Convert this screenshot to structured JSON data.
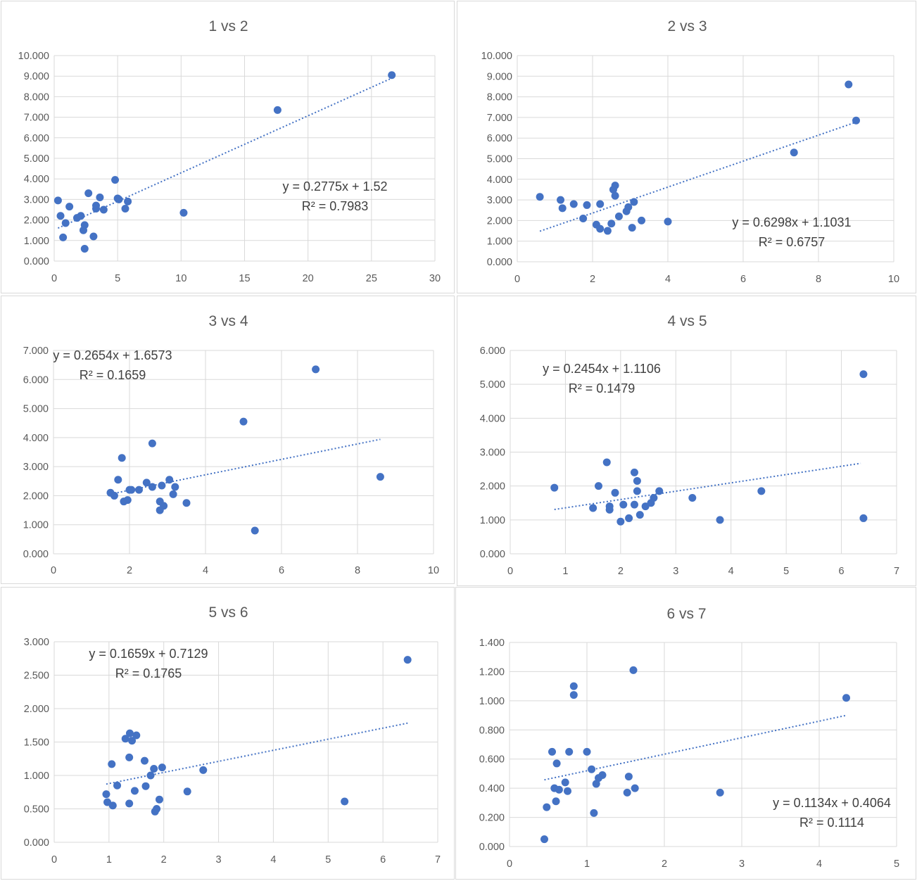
{
  "chart_data": [
    {
      "type": "scatter",
      "title": "1 vs 2",
      "xlim": [
        0,
        30
      ],
      "xticks": [
        0,
        5,
        10,
        15,
        20,
        25,
        30
      ],
      "ylim": [
        0,
        10
      ],
      "yticks": [
        "0.000",
        "1.000",
        "2.000",
        "3.000",
        "4.000",
        "5.000",
        "6.000",
        "7.000",
        "8.000",
        "9.000",
        "10.000"
      ],
      "grid": true,
      "trendline": {
        "type": "linear",
        "x_range": [
          0.3,
          26.6
        ],
        "equation": "y = 0.2775x + 1.52",
        "r2_label": "R² = 0.7983"
      },
      "points": [
        {
          "x": 0.3,
          "y": 2.95
        },
        {
          "x": 0.5,
          "y": 2.2
        },
        {
          "x": 0.7,
          "y": 1.15
        },
        {
          "x": 0.9,
          "y": 1.85
        },
        {
          "x": 1.2,
          "y": 2.65
        },
        {
          "x": 1.8,
          "y": 2.1
        },
        {
          "x": 2.1,
          "y": 2.2
        },
        {
          "x": 2.3,
          "y": 1.5
        },
        {
          "x": 2.4,
          "y": 1.75
        },
        {
          "x": 2.4,
          "y": 0.6
        },
        {
          "x": 2.7,
          "y": 3.3
        },
        {
          "x": 3.1,
          "y": 1.2
        },
        {
          "x": 3.3,
          "y": 2.7
        },
        {
          "x": 3.3,
          "y": 2.55
        },
        {
          "x": 3.6,
          "y": 3.1
        },
        {
          "x": 3.9,
          "y": 2.5
        },
        {
          "x": 4.8,
          "y": 3.95
        },
        {
          "x": 5.0,
          "y": 3.05
        },
        {
          "x": 5.1,
          "y": 3.0
        },
        {
          "x": 5.6,
          "y": 2.55
        },
        {
          "x": 5.8,
          "y": 2.9
        },
        {
          "x": 10.2,
          "y": 2.35
        },
        {
          "x": 17.6,
          "y": 7.35
        },
        {
          "x": 26.6,
          "y": 9.05
        }
      ]
    },
    {
      "type": "scatter",
      "title": "2 vs 3",
      "xlim": [
        0,
        10
      ],
      "xticks": [
        0,
        2,
        4,
        6,
        8,
        10
      ],
      "ylim": [
        0,
        10
      ],
      "yticks": [
        "0.000",
        "1.000",
        "2.000",
        "3.000",
        "4.000",
        "5.000",
        "6.000",
        "7.000",
        "8.000",
        "9.000",
        "10.000"
      ],
      "grid": true,
      "trendline": {
        "type": "linear",
        "x_range": [
          0.6,
          9.0
        ],
        "equation": "y = 0.6298x + 1.1031",
        "r2_label": "R² = 0.6757"
      },
      "points": [
        {
          "x": 0.6,
          "y": 3.15
        },
        {
          "x": 1.15,
          "y": 3.0
        },
        {
          "x": 1.2,
          "y": 2.6
        },
        {
          "x": 1.5,
          "y": 2.8
        },
        {
          "x": 1.75,
          "y": 2.1
        },
        {
          "x": 1.85,
          "y": 2.75
        },
        {
          "x": 2.1,
          "y": 1.8
        },
        {
          "x": 2.2,
          "y": 1.6
        },
        {
          "x": 2.2,
          "y": 2.8
        },
        {
          "x": 2.4,
          "y": 1.5
        },
        {
          "x": 2.5,
          "y": 1.85
        },
        {
          "x": 2.55,
          "y": 3.5
        },
        {
          "x": 2.6,
          "y": 3.2
        },
        {
          "x": 2.6,
          "y": 3.7
        },
        {
          "x": 2.7,
          "y": 2.2
        },
        {
          "x": 2.9,
          "y": 2.45
        },
        {
          "x": 2.95,
          "y": 2.65
        },
        {
          "x": 3.05,
          "y": 1.65
        },
        {
          "x": 3.1,
          "y": 2.9
        },
        {
          "x": 3.3,
          "y": 2.0
        },
        {
          "x": 4.0,
          "y": 1.95
        },
        {
          "x": 7.35,
          "y": 5.3
        },
        {
          "x": 8.8,
          "y": 8.6
        },
        {
          "x": 9.0,
          "y": 6.85
        }
      ]
    },
    {
      "type": "scatter",
      "title": "3 vs 4",
      "xlim": [
        0,
        10
      ],
      "xticks": [
        0,
        2,
        4,
        6,
        8,
        10
      ],
      "ylim": [
        0,
        7
      ],
      "yticks": [
        "0.000",
        "1.000",
        "2.000",
        "3.000",
        "4.000",
        "5.000",
        "6.000",
        "7.000"
      ],
      "grid": true,
      "trendline": {
        "type": "linear",
        "x_range": [
          1.5,
          8.6
        ],
        "equation": "y = 0.2654x + 1.6573",
        "r2_label": "R² = 0.1659"
      },
      "points": [
        {
          "x": 1.5,
          "y": 2.1
        },
        {
          "x": 1.6,
          "y": 2.0
        },
        {
          "x": 1.7,
          "y": 2.55
        },
        {
          "x": 1.8,
          "y": 3.3
        },
        {
          "x": 1.85,
          "y": 1.8
        },
        {
          "x": 1.95,
          "y": 1.85
        },
        {
          "x": 2.0,
          "y": 2.2
        },
        {
          "x": 2.05,
          "y": 2.2
        },
        {
          "x": 2.25,
          "y": 2.2
        },
        {
          "x": 2.45,
          "y": 2.45
        },
        {
          "x": 2.6,
          "y": 2.3
        },
        {
          "x": 2.6,
          "y": 3.8
        },
        {
          "x": 2.8,
          "y": 1.8
        },
        {
          "x": 2.85,
          "y": 2.35
        },
        {
          "x": 2.8,
          "y": 1.5
        },
        {
          "x": 2.9,
          "y": 1.65
        },
        {
          "x": 3.05,
          "y": 2.55
        },
        {
          "x": 3.15,
          "y": 2.05
        },
        {
          "x": 3.2,
          "y": 2.3
        },
        {
          "x": 3.5,
          "y": 1.75
        },
        {
          "x": 5.0,
          "y": 4.55
        },
        {
          "x": 5.3,
          "y": 0.8
        },
        {
          "x": 6.9,
          "y": 6.35
        },
        {
          "x": 8.6,
          "y": 2.65
        }
      ]
    },
    {
      "type": "scatter",
      "title": "4 vs 5",
      "xlim": [
        0,
        7
      ],
      "xticks": [
        0,
        1,
        2,
        3,
        4,
        5,
        6,
        7
      ],
      "ylim": [
        0,
        6
      ],
      "yticks": [
        "0.000",
        "1.000",
        "2.000",
        "3.000",
        "4.000",
        "5.000",
        "6.000"
      ],
      "grid": true,
      "trendline": {
        "type": "linear",
        "x_range": [
          0.8,
          6.35
        ],
        "equation": "y = 0.2454x + 1.1106",
        "r2_label": "R² = 0.1479"
      },
      "points": [
        {
          "x": 0.8,
          "y": 1.95
        },
        {
          "x": 1.5,
          "y": 1.35
        },
        {
          "x": 1.6,
          "y": 2.0
        },
        {
          "x": 1.75,
          "y": 2.7
        },
        {
          "x": 1.8,
          "y": 1.4
        },
        {
          "x": 1.8,
          "y": 1.3
        },
        {
          "x": 1.9,
          "y": 1.8
        },
        {
          "x": 2.0,
          "y": 0.95
        },
        {
          "x": 2.05,
          "y": 1.45
        },
        {
          "x": 2.15,
          "y": 1.05
        },
        {
          "x": 2.25,
          "y": 2.4
        },
        {
          "x": 2.25,
          "y": 1.45
        },
        {
          "x": 2.3,
          "y": 1.85
        },
        {
          "x": 2.3,
          "y": 2.15
        },
        {
          "x": 2.35,
          "y": 1.15
        },
        {
          "x": 2.45,
          "y": 1.4
        },
        {
          "x": 2.55,
          "y": 1.5
        },
        {
          "x": 2.6,
          "y": 1.65
        },
        {
          "x": 2.7,
          "y": 1.85
        },
        {
          "x": 3.3,
          "y": 1.65
        },
        {
          "x": 3.8,
          "y": 1.0
        },
        {
          "x": 4.55,
          "y": 1.85
        },
        {
          "x": 6.4,
          "y": 5.3
        },
        {
          "x": 6.4,
          "y": 1.05
        }
      ]
    },
    {
      "type": "scatter",
      "title": "5 vs 6",
      "xlim": [
        0,
        7
      ],
      "xticks": [
        0,
        1,
        2,
        3,
        4,
        5,
        6,
        7
      ],
      "ylim": [
        0,
        3
      ],
      "yticks": [
        "0.000",
        "0.500",
        "1.000",
        "1.500",
        "2.000",
        "2.500",
        "3.000"
      ],
      "grid": true,
      "trendline": {
        "type": "linear",
        "x_range": [
          0.95,
          6.45
        ],
        "equation": "y = 0.1659x + 0.7129",
        "r2_label": "R² = 0.1765"
      },
      "points": [
        {
          "x": 0.95,
          "y": 0.72
        },
        {
          "x": 0.97,
          "y": 0.6
        },
        {
          "x": 1.05,
          "y": 1.17
        },
        {
          "x": 1.07,
          "y": 0.55
        },
        {
          "x": 1.15,
          "y": 0.85
        },
        {
          "x": 1.3,
          "y": 1.55
        },
        {
          "x": 1.37,
          "y": 1.27
        },
        {
          "x": 1.37,
          "y": 0.58
        },
        {
          "x": 1.38,
          "y": 1.63
        },
        {
          "x": 1.42,
          "y": 1.52
        },
        {
          "x": 1.47,
          "y": 0.77
        },
        {
          "x": 1.5,
          "y": 1.6
        },
        {
          "x": 1.65,
          "y": 1.22
        },
        {
          "x": 1.67,
          "y": 0.84
        },
        {
          "x": 1.76,
          "y": 1.0
        },
        {
          "x": 1.82,
          "y": 1.1
        },
        {
          "x": 1.84,
          "y": 0.46
        },
        {
          "x": 1.87,
          "y": 0.5
        },
        {
          "x": 1.92,
          "y": 0.64
        },
        {
          "x": 1.97,
          "y": 1.12
        },
        {
          "x": 2.43,
          "y": 0.76
        },
        {
          "x": 2.72,
          "y": 1.08
        },
        {
          "x": 5.3,
          "y": 0.61
        },
        {
          "x": 6.45,
          "y": 2.73
        }
      ]
    },
    {
      "type": "scatter",
      "title": "6 vs 7",
      "xlim": [
        0,
        5
      ],
      "xticks": [
        0,
        1,
        2,
        3,
        4,
        5
      ],
      "ylim": [
        0,
        1.4
      ],
      "yticks": [
        "0.000",
        "0.200",
        "0.400",
        "0.600",
        "0.800",
        "1.000",
        "1.200",
        "1.400"
      ],
      "grid": true,
      "trendline": {
        "type": "linear",
        "x_range": [
          0.45,
          4.35
        ],
        "equation": "y = 0.1134x + 0.4064",
        "r2_label": "R² = 0.1114"
      },
      "points": [
        {
          "x": 0.45,
          "y": 0.05
        },
        {
          "x": 0.48,
          "y": 0.27
        },
        {
          "x": 0.55,
          "y": 0.65
        },
        {
          "x": 0.58,
          "y": 0.4
        },
        {
          "x": 0.6,
          "y": 0.31
        },
        {
          "x": 0.61,
          "y": 0.57
        },
        {
          "x": 0.64,
          "y": 0.39
        },
        {
          "x": 0.72,
          "y": 0.44
        },
        {
          "x": 0.75,
          "y": 0.38
        },
        {
          "x": 0.77,
          "y": 0.65
        },
        {
          "x": 0.83,
          "y": 1.04
        },
        {
          "x": 0.83,
          "y": 1.1
        },
        {
          "x": 1.0,
          "y": 0.65
        },
        {
          "x": 1.06,
          "y": 0.53
        },
        {
          "x": 1.09,
          "y": 0.23
        },
        {
          "x": 1.12,
          "y": 0.43
        },
        {
          "x": 1.15,
          "y": 0.47
        },
        {
          "x": 1.2,
          "y": 0.49
        },
        {
          "x": 1.52,
          "y": 0.37
        },
        {
          "x": 1.54,
          "y": 0.48
        },
        {
          "x": 1.6,
          "y": 1.21
        },
        {
          "x": 1.62,
          "y": 0.4
        },
        {
          "x": 2.72,
          "y": 0.37
        },
        {
          "x": 4.35,
          "y": 1.02
        }
      ]
    }
  ],
  "colors": {
    "points": "#4472c4",
    "trendline": "#4472c4",
    "grid": "#d9d9d9",
    "text": "#595959",
    "equation": "#404040"
  }
}
